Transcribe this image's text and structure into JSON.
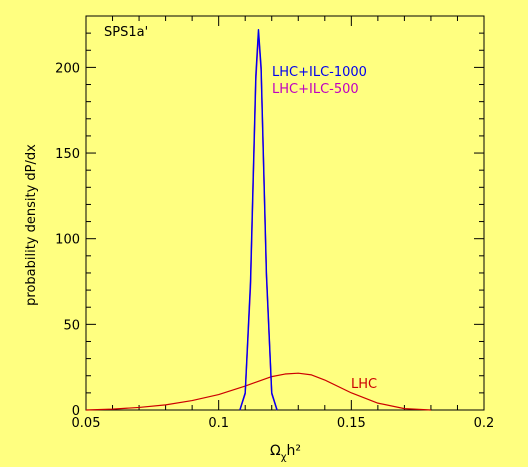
{
  "colors": {
    "background": "#ffff80",
    "axis": "#000000",
    "lhc": "#cc0000",
    "lhc_ilc_1000": "#0000ee",
    "lhc_ilc_500": "#c000c0"
  },
  "chart_data": {
    "type": "line",
    "title": "",
    "panel_label": "SPS1a'",
    "xlabel_main": "Ω",
    "xlabel_sub": "χ",
    "xlabel_tail": "h²",
    "ylabel": "probability density dP/dx",
    "xlim": [
      0.05,
      0.2
    ],
    "ylim": [
      0,
      230
    ],
    "xticks": [
      0.05,
      0.1,
      0.15,
      0.2
    ],
    "xtick_labels": [
      "0.05",
      "0.1",
      "0.15",
      "0.2"
    ],
    "yticks": [
      0,
      50,
      100,
      150,
      200
    ],
    "ytick_labels": [
      "0",
      "50",
      "100",
      "150",
      "200"
    ],
    "grid": false,
    "legend": "top-center",
    "series": [
      {
        "name": "LHC",
        "x": [
          0.05,
          0.06,
          0.07,
          0.08,
          0.09,
          0.1,
          0.11,
          0.12,
          0.125,
          0.13,
          0.135,
          0.14,
          0.15,
          0.16,
          0.17,
          0.18
        ],
        "y": [
          0.0,
          0.5,
          1.5,
          3.0,
          5.5,
          9.0,
          14.0,
          19.5,
          21.0,
          21.5,
          20.5,
          17.5,
          10.0,
          4.0,
          0.8,
          0.0
        ]
      },
      {
        "name": "LHC+ILC-1000",
        "x": [
          0.108,
          0.11,
          0.112,
          0.114,
          0.115,
          0.116,
          0.118,
          0.12,
          0.122
        ],
        "y": [
          0.0,
          10.0,
          75.0,
          195.0,
          222.0,
          200.0,
          80.0,
          10.0,
          0.0
        ]
      },
      {
        "name": "LHC+ILC-500",
        "x": [
          0.108,
          0.11,
          0.112,
          0.114,
          0.115,
          0.116,
          0.118,
          0.12,
          0.122
        ],
        "y": [
          0.0,
          9.5,
          72.0,
          192.0,
          220.0,
          198.0,
          78.0,
          9.5,
          0.0
        ]
      }
    ]
  }
}
